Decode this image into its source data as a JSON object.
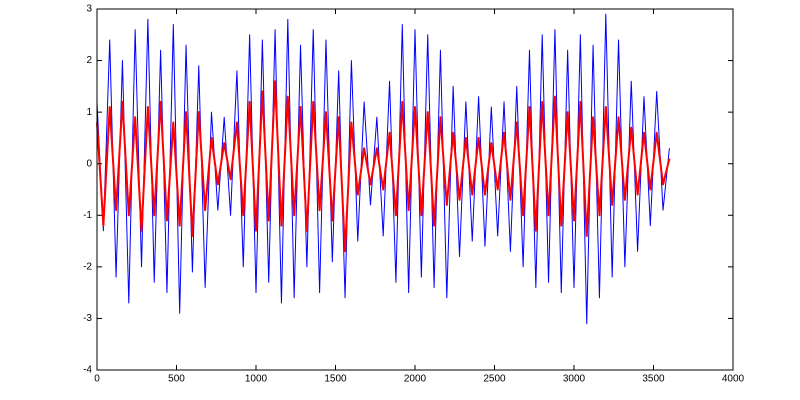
{
  "chart_data": {
    "type": "line",
    "x": [
      0,
      40,
      80,
      120,
      160,
      200,
      240,
      280,
      320,
      360,
      400,
      440,
      480,
      520,
      560,
      600,
      640,
      680,
      720,
      760,
      800,
      840,
      880,
      920,
      960,
      1000,
      1040,
      1080,
      1120,
      1160,
      1200,
      1240,
      1280,
      1320,
      1360,
      1400,
      1440,
      1480,
      1520,
      1560,
      1600,
      1640,
      1680,
      1720,
      1760,
      1800,
      1840,
      1880,
      1920,
      1960,
      2000,
      2040,
      2080,
      2120,
      2160,
      2200,
      2240,
      2280,
      2320,
      2360,
      2400,
      2440,
      2480,
      2520,
      2560,
      2600,
      2640,
      2680,
      2720,
      2760,
      2800,
      2840,
      2880,
      2920,
      2960,
      3000,
      3040,
      3080,
      3120,
      3160,
      3200,
      3240,
      3280,
      3320,
      3360,
      3400,
      3440,
      3480,
      3520,
      3560,
      3600
    ],
    "series": [
      {
        "color": "#0000ff",
        "values": [
          1.2,
          -1.3,
          2.4,
          -2.2,
          2.0,
          -2.7,
          2.6,
          -2.0,
          2.8,
          -2.3,
          2.2,
          -2.5,
          2.7,
          -2.9,
          2.3,
          -2.1,
          1.9,
          -2.4,
          1.0,
          -0.9,
          0.9,
          -1.0,
          1.8,
          -2.0,
          2.5,
          -2.5,
          2.4,
          -2.3,
          2.6,
          -2.7,
          2.8,
          -2.6,
          2.3,
          -2.0,
          2.6,
          -2.5,
          2.4,
          -1.9,
          1.8,
          -2.6,
          2.0,
          -1.5,
          1.2,
          -0.8,
          0.9,
          -1.4,
          1.6,
          -2.3,
          2.7,
          -2.5,
          2.6,
          -2.2,
          2.5,
          -2.4,
          2.2,
          -2.6,
          1.5,
          -1.8,
          1.2,
          -1.5,
          1.3,
          -1.6,
          1.1,
          -1.4,
          1.2,
          -1.7,
          1.5,
          -2.0,
          2.2,
          -2.4,
          2.5,
          -2.3,
          2.6,
          -2.5,
          2.2,
          -2.4,
          2.5,
          -3.1,
          2.3,
          -2.6,
          2.9,
          -2.2,
          2.4,
          -2.0,
          1.6,
          -1.7,
          1.3,
          -1.2,
          1.4,
          -0.9,
          0.3
        ]
      },
      {
        "color": "#ff0000",
        "values": [
          0.8,
          -1.2,
          1.1,
          -0.9,
          1.2,
          -1.0,
          0.9,
          -1.3,
          1.1,
          -1.0,
          1.2,
          -1.1,
          0.8,
          -1.2,
          1.0,
          -1.4,
          1.0,
          -0.9,
          0.5,
          -0.4,
          0.4,
          -0.3,
          0.8,
          -1.0,
          1.2,
          -1.3,
          1.4,
          -1.1,
          1.6,
          -1.2,
          1.3,
          -1.0,
          1.1,
          -1.3,
          1.2,
          -0.9,
          1.0,
          -1.1,
          0.9,
          -1.7,
          0.8,
          -0.6,
          0.3,
          -0.4,
          0.3,
          -0.5,
          0.6,
          -1.0,
          1.2,
          -0.9,
          1.1,
          -1.0,
          1.0,
          -1.2,
          0.9,
          -0.8,
          0.6,
          -0.7,
          0.5,
          -0.6,
          0.5,
          -0.6,
          0.4,
          -0.5,
          0.6,
          -0.7,
          0.8,
          -1.0,
          1.1,
          -1.3,
          1.2,
          -1.0,
          1.3,
          -1.2,
          1.0,
          -1.1,
          1.2,
          -1.4,
          0.9,
          -1.0,
          1.1,
          -0.8,
          0.9,
          -0.7,
          0.7,
          -0.6,
          0.6,
          -0.5,
          0.6,
          -0.4,
          0.1
        ]
      }
    ],
    "xlim": [
      0,
      4000
    ],
    "xticks": [
      0,
      500,
      1000,
      1500,
      2000,
      2500,
      3000,
      3500,
      4000
    ],
    "ylim": [
      -4,
      3
    ],
    "yticks": [
      -4,
      -3,
      -2,
      -1,
      0,
      1,
      2,
      3
    ],
    "grid": false
  }
}
